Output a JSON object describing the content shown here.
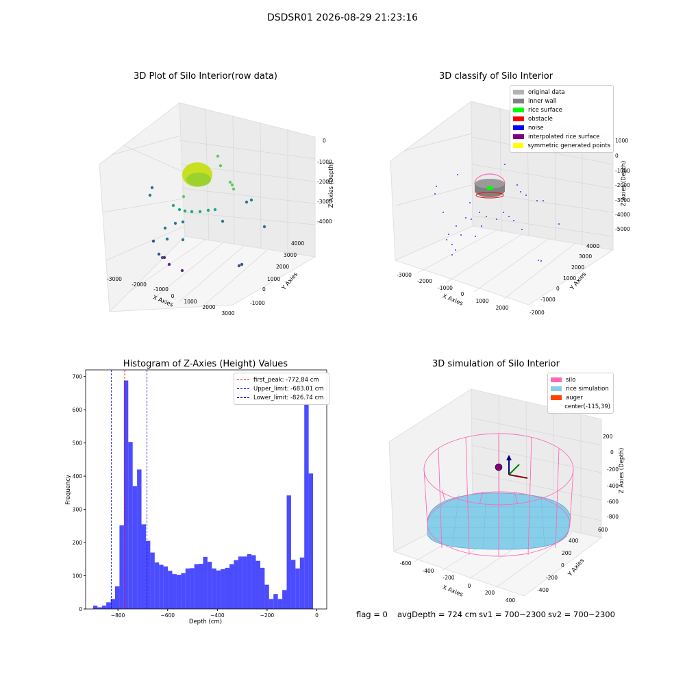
{
  "suptitle": "DSDSR01 2026-08-29 21:23:16",
  "panels": {
    "raw": {
      "title": "3D Plot of Silo Interior(row data)",
      "xlabel": "X Axies",
      "ylabel": "Y Axies",
      "zlabel": "Z Axies (Depth)",
      "xticks": [
        "-3000",
        "-2000",
        "-1000",
        "0",
        "1000",
        "2000",
        "3000"
      ],
      "yticks": [
        "-1000",
        "0",
        "1000",
        "2000",
        "3000",
        "4000"
      ],
      "zticks": [
        "0",
        "-1000",
        "-2000",
        "-3000",
        "-4000"
      ]
    },
    "classify": {
      "title": "3D classify of Silo Interior",
      "xlabel": "X Axies",
      "ylabel": "Y Axies",
      "zlabel": "Z Axies (Depth)",
      "xticks": [
        "-3000",
        "-2000",
        "-1000",
        "0",
        "1000",
        "2000"
      ],
      "yticks": [
        "-2000",
        "-1000",
        "0",
        "1000",
        "2000",
        "3000",
        "4000"
      ],
      "zticks": [
        "1000",
        "0",
        "-1000",
        "-2000",
        "-3000",
        "-4000",
        "-5000"
      ],
      "legend": [
        {
          "label": "original data",
          "color": "#b3b3b3"
        },
        {
          "label": "inner wall",
          "color": "#808080"
        },
        {
          "label": "rice surface",
          "color": "#00ff00"
        },
        {
          "label": "obstacle",
          "color": "#ff0000"
        },
        {
          "label": "noise",
          "color": "#0000ff"
        },
        {
          "label": "interpolated rice surface",
          "color": "#800080"
        },
        {
          "label": "symmetric generated points",
          "color": "#ffff00"
        }
      ]
    },
    "simulation": {
      "title": "3D simulation of Silo Interior",
      "xlabel": "X Axies",
      "ylabel": "Y Axies",
      "zlabel": "Z Axies (Depth)",
      "xticks": [
        "-600",
        "-400",
        "-200",
        "0",
        "200",
        "400"
      ],
      "yticks": [
        "-400",
        "-200",
        "0",
        "200",
        "400",
        "600"
      ],
      "zticks": [
        "200",
        "0",
        "-200",
        "-400",
        "-600",
        "-800"
      ],
      "legend": [
        {
          "label": "silo",
          "color": "#ff69b4"
        },
        {
          "label": "rice simulation",
          "color": "#87ceeb"
        },
        {
          "label": "auger",
          "color": "#ff4500"
        },
        {
          "label": "center(-115,39)",
          "color": ""
        }
      ]
    }
  },
  "status": {
    "flag": "flag = 0",
    "avg": "avgDepth = 724 cm",
    "sv1": "sv1 = 700~2300",
    "sv2": "sv2 = 700~2300"
  },
  "chart_data": [
    {
      "type": "bar",
      "title": "Histogram of Z-Axies (Height) Values",
      "xlabel": "Depth (cm)",
      "ylabel": "Frequency",
      "xlim": [
        -930,
        40
      ],
      "ylim": [
        0,
        720
      ],
      "xticks": [
        -800,
        -600,
        -400,
        -200,
        0
      ],
      "yticks": [
        0,
        100,
        200,
        300,
        400,
        500,
        600,
        700
      ],
      "bin_width": 17.7,
      "bin_start": -900,
      "values": [
        10,
        5,
        10,
        20,
        30,
        68,
        252,
        688,
        503,
        370,
        420,
        255,
        205,
        170,
        140,
        133,
        128,
        115,
        105,
        103,
        108,
        122,
        123,
        135,
        136,
        157,
        142,
        122,
        116,
        120,
        124,
        135,
        147,
        158,
        158,
        165,
        162,
        145,
        124,
        73,
        30,
        45,
        30,
        57,
        342,
        148,
        122,
        155,
        615,
        408
      ],
      "color": "#0000ff",
      "lines": [
        {
          "label": "first_peak: -772.84 cm",
          "x": -772.84,
          "color": "#ff0000"
        },
        {
          "label": "Upper_limit: -683.01 cm",
          "x": -683.01,
          "color": "#0000ff"
        },
        {
          "label": "Lower_limit: -826.74 cm",
          "x": -826.74,
          "color": "#0000ff"
        }
      ],
      "legend_position": "top-right"
    }
  ]
}
